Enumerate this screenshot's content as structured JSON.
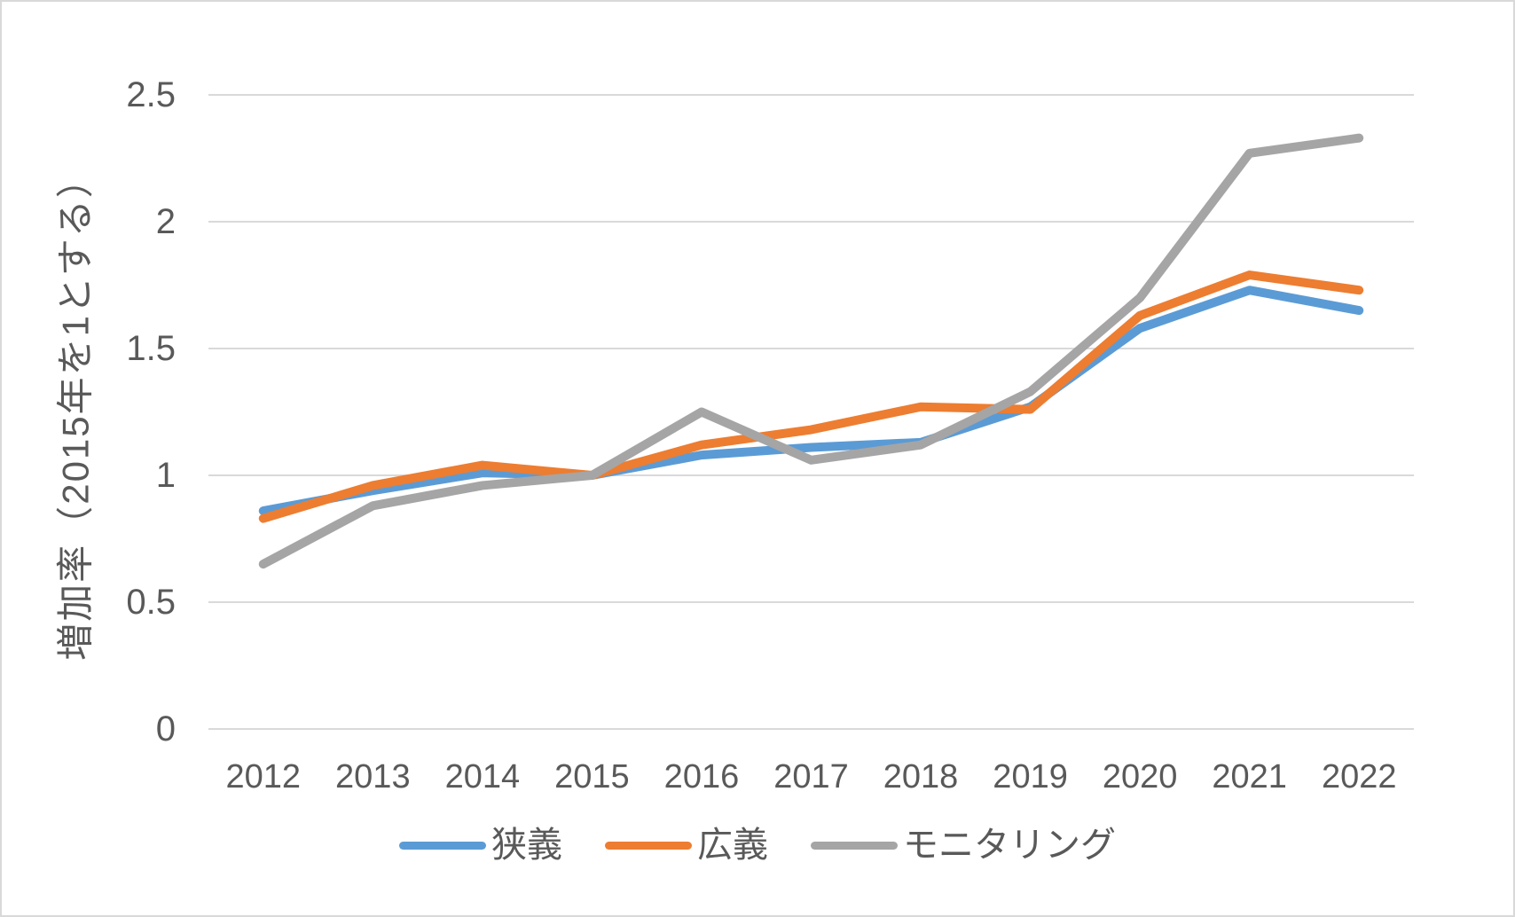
{
  "chart_data": {
    "type": "line",
    "title": "",
    "xlabel": "",
    "ylabel": "増加率（2015年を1とする）",
    "categories": [
      "2012",
      "2013",
      "2014",
      "2015",
      "2016",
      "2017",
      "2018",
      "2019",
      "2020",
      "2021",
      "2022"
    ],
    "series": [
      {
        "id": "narrow",
        "name": "狭義",
        "color": "#5B9BD5",
        "values": [
          0.86,
          0.94,
          1.01,
          1.0,
          1.08,
          1.11,
          1.13,
          1.27,
          1.58,
          1.73,
          1.65
        ]
      },
      {
        "id": "broad",
        "name": "広義",
        "color": "#ED7D31",
        "values": [
          0.83,
          0.96,
          1.04,
          1.0,
          1.12,
          1.18,
          1.27,
          1.26,
          1.63,
          1.79,
          1.73
        ]
      },
      {
        "id": "monitoring",
        "name": "モニタリング",
        "color": "#A5A5A5",
        "values": [
          0.65,
          0.88,
          0.96,
          1.0,
          1.25,
          1.06,
          1.12,
          1.33,
          1.7,
          2.27,
          2.33
        ]
      }
    ],
    "ylim": [
      0,
      2.5
    ],
    "y_ticks": [
      "0",
      "0.5",
      "1",
      "1.5",
      "2",
      "2.5"
    ],
    "grid": "horizontal",
    "legend_position": "bottom"
  },
  "styles": {
    "background": "#FFFFFF",
    "border_color": "#D9D9D9",
    "grid_color": "#D9D9D9",
    "text_color": "#595959"
  }
}
